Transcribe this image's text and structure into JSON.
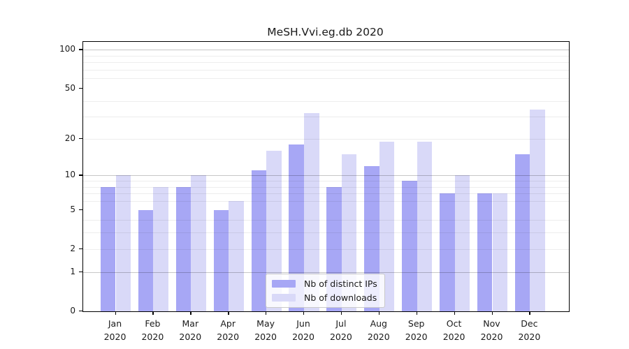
{
  "figure": {
    "title": "MeSH.Vvi.eg.db 2020"
  },
  "chart_data": {
    "type": "bar",
    "title": "MeSH.Vvi.eg.db 2020",
    "categories": [
      "Jan",
      "Feb",
      "Mar",
      "Apr",
      "May",
      "Jun",
      "Jul",
      "Aug",
      "Sep",
      "Oct",
      "Nov",
      "Dec"
    ],
    "x_year_label": "2020",
    "series": [
      {
        "name": "Nb of distinct IPs",
        "color": "#a7a7f5",
        "values": [
          8,
          5,
          8,
          5,
          11,
          18,
          8,
          12,
          9,
          7,
          7,
          15
        ]
      },
      {
        "name": "Nb of downloads",
        "color": "#d9d9f8",
        "values": [
          10,
          8,
          10,
          6,
          16,
          32,
          15,
          19,
          19,
          10,
          7,
          34
        ]
      }
    ],
    "y_axis": {
      "scale": "log1p",
      "tick_values": [
        0,
        1,
        2,
        5,
        10,
        20,
        50,
        100
      ],
      "major_grid_values": [
        1,
        10,
        100
      ],
      "minor_grid_values": [
        2,
        3,
        4,
        6,
        7,
        8,
        9,
        20,
        30,
        40,
        60,
        70,
        80,
        90
      ],
      "top_value": 115
    },
    "legend": {
      "position": "bottom-center-inside"
    },
    "grid": true
  }
}
